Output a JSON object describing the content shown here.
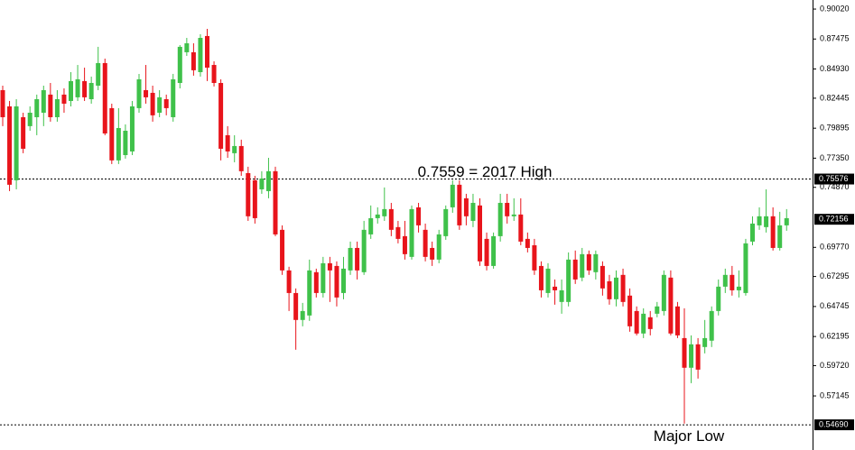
{
  "chart_data": {
    "type": "candlestick",
    "annotations": [
      "0.7559 = 2017 High",
      "Major Low"
    ],
    "ylim": [
      0.5255,
      0.9079
    ],
    "yticks": [
      {
        "value": 0.9002,
        "label": "0.90020"
      },
      0.87475,
      {
        "value": 0.8493,
        "label": "0.84930"
      },
      0.82445,
      0.79895,
      {
        "value": 0.7735,
        "label": "0.77350"
      },
      {
        "value": 0.7487,
        "label": "0.74870"
      },
      {
        "value": 0.6977,
        "label": "0.69770"
      },
      0.67295,
      0.64745,
      0.62195,
      {
        "value": 0.5972,
        "label": "0.59720"
      },
      0.57145
    ],
    "marked_levels": [
      0.75576,
      {
        "value": 0.5469,
        "label": "0.54690"
      }
    ],
    "current_price": 0.72156,
    "up_color": "#3fc14a",
    "down_color": "#e8141b",
    "open": [
      0.8313,
      0.8175,
      0.7547,
      0.8083,
      0.8007,
      0.8083,
      0.8121,
      0.8275,
      0.8083,
      0.8275,
      0.8221,
      0.8252,
      0.839,
      0.8236,
      0.8351,
      0.8543,
      0.816,
      0.7716,
      0.7761,
      0.7792,
      0.816,
      0.8313,
      0.829,
      0.8121,
      0.8236,
      0.8083,
      0.8374,
      0.8635,
      0.8635,
      0.8466,
      0.8773,
      0.8527,
      0.8374,
      0.793,
      0.7777,
      0.7838,
      0.7608,
      0.7547,
      0.747,
      0.7455,
      0.7624,
      0.7126,
      0.6781,
      0.6589,
      0.636,
      0.6398,
      0.6766,
      0.6589,
      0.6842,
      0.6819,
      0.6589,
      0.6781,
      0.6972,
      0.6766,
      0.7087,
      0.7225,
      0.7241,
      0.7302,
      0.7149,
      0.7072,
      0.6896,
      0.7317,
      0.7126,
      0.6972,
      0.6873,
      0.7072,
      0.7317,
      0.7509,
      0.7394,
      0.7202,
      0.7333,
      0.7049,
      0.6819,
      0.7072,
      0.7355,
      0.7241,
      0.7256,
      0.7049,
      0.6995,
      0.6819,
      0.6589,
      0.6643,
      0.6513,
      0.6513,
      0.6873,
      0.672,
      0.6919,
      0.6766,
      0.6819,
      0.6689,
      0.6536,
      0.6743,
      0.6567,
      0.6436,
      0.6245,
      0.6383,
      0.6413,
      0.6436,
      0.672,
      0.6475,
      0.6206,
      0.5954,
      0.6153,
      0.613,
      0.6184,
      0.6436,
      0.6643,
      0.6743,
      0.6612,
      0.6589,
      0.7026,
      0.7164,
      0.7149,
      0.7241,
      0.6972,
      0.7164
    ],
    "high": [
      0.8351,
      0.8221,
      0.8236,
      0.8121,
      0.8175,
      0.8275,
      0.8351,
      0.8374,
      0.8313,
      0.8328,
      0.8466,
      0.8527,
      0.8504,
      0.8428,
      0.8681,
      0.8581,
      0.8198,
      0.816,
      0.8022,
      0.8221,
      0.8451,
      0.8527,
      0.8351,
      0.8313,
      0.8275,
      0.8451,
      0.8696,
      0.8757,
      0.8711,
      0.8788,
      0.8834,
      0.8558,
      0.8405,
      0.8007,
      0.793,
      0.7892,
      0.7662,
      0.7585,
      0.7624,
      0.7738,
      0.7662,
      0.7164,
      0.6812,
      0.6628,
      0.6505,
      0.6873,
      0.6796,
      0.6896,
      0.6896,
      0.6858,
      0.6896,
      0.7026,
      0.7026,
      0.7202,
      0.7333,
      0.7317,
      0.7486,
      0.7355,
      0.7202,
      0.7202,
      0.7333,
      0.7355,
      0.7179,
      0.7026,
      0.7126,
      0.7333,
      0.7547,
      0.7547,
      0.7432,
      0.7432,
      0.7394,
      0.7103,
      0.7103,
      0.7432,
      0.7432,
      0.7394,
      0.7394,
      0.7103,
      0.7049,
      0.6858,
      0.6842,
      0.6704,
      0.6704,
      0.6934,
      0.695,
      0.6972,
      0.695,
      0.695,
      0.6858,
      0.6743,
      0.6781,
      0.6796,
      0.6628,
      0.6475,
      0.6459,
      0.6436,
      0.6513,
      0.6781,
      0.6781,
      0.6513,
      0.6459,
      0.6229,
      0.6206,
      0.636,
      0.6475,
      0.6704,
      0.6796,
      0.6819,
      0.6781,
      0.7049,
      0.7241,
      0.7317,
      0.747,
      0.7317,
      0.7279,
      0.7302
    ],
    "low": [
      0.8007,
      0.7455,
      0.747,
      0.7777,
      0.7968,
      0.793,
      0.8007,
      0.8045,
      0.8045,
      0.8121,
      0.8175,
      0.8221,
      0.8221,
      0.8198,
      0.8313,
      0.793,
      0.7685,
      0.7685,
      0.7731,
      0.7761,
      0.8121,
      0.8198,
      0.8045,
      0.8083,
      0.8099,
      0.8045,
      0.8328,
      0.8604,
      0.8436,
      0.8428,
      0.839,
      0.8344,
      0.7716,
      0.7738,
      0.77,
      0.7585,
      0.7202,
      0.7179,
      0.7432,
      0.7394,
      0.7072,
      0.6743,
      0.6436,
      0.6107,
      0.6306,
      0.6352,
      0.6551,
      0.6551,
      0.6513,
      0.6475,
      0.6536,
      0.6743,
      0.6704,
      0.6743,
      0.7049,
      0.7179,
      0.7202,
      0.7072,
      0.7011,
      0.6873,
      0.6873,
      0.7103,
      0.6858,
      0.6819,
      0.6842,
      0.7041,
      0.7271,
      0.7126,
      0.7164,
      0.7149,
      0.6819,
      0.6781,
      0.6796,
      0.7026,
      0.7179,
      0.7202,
      0.6995,
      0.6934,
      0.6743,
      0.6551,
      0.6551,
      0.649,
      0.6413,
      0.6475,
      0.6666,
      0.6689,
      0.6743,
      0.6704,
      0.6567,
      0.649,
      0.6475,
      0.6475,
      0.626,
      0.6229,
      0.6206,
      0.6229,
      0.6383,
      0.6398,
      0.6229,
      0.6206,
      0.5479,
      0.5823,
      0.5862,
      0.6076,
      0.613,
      0.6398,
      0.6589,
      0.6567,
      0.6551,
      0.6567,
      0.6995,
      0.7126,
      0.7103,
      0.695,
      0.695,
      0.7118
    ],
    "close": [
      0.8083,
      0.7509,
      0.8175,
      0.7815,
      0.8121,
      0.8236,
      0.8313,
      0.8083,
      0.8236,
      0.8198,
      0.839,
      0.8405,
      0.8252,
      0.8374,
      0.8543,
      0.7945,
      0.7716,
      0.7991,
      0.7968,
      0.8175,
      0.8405,
      0.8252,
      0.8099,
      0.8252,
      0.816,
      0.8405,
      0.8681,
      0.8711,
      0.8482,
      0.8757,
      0.8504,
      0.8374,
      0.7815,
      0.7792,
      0.7838,
      0.7624,
      0.7241,
      0.7225,
      0.7562,
      0.7624,
      0.7087,
      0.6781,
      0.6589,
      0.636,
      0.6436,
      0.6781,
      0.6589,
      0.6842,
      0.6781,
      0.6551,
      0.6796,
      0.6972,
      0.6781,
      0.7126,
      0.7225,
      0.7256,
      0.7302,
      0.7126,
      0.7049,
      0.6919,
      0.7302,
      0.7164,
      0.6896,
      0.6873,
      0.7087,
      0.7302,
      0.7509,
      0.7164,
      0.7241,
      0.7355,
      0.6858,
      0.6819,
      0.7072,
      0.7355,
      0.7241,
      0.7256,
      0.7026,
      0.6972,
      0.6781,
      0.6612,
      0.6796,
      0.6612,
      0.6612,
      0.6873,
      0.6704,
      0.6919,
      0.6781,
      0.6919,
      0.6628,
      0.6536,
      0.672,
      0.6513,
      0.6306,
      0.6245,
      0.6413,
      0.6283,
      0.6475,
      0.6743,
      0.6245,
      0.6229,
      0.5954,
      0.6153,
      0.5938,
      0.6206,
      0.6436,
      0.6643,
      0.6743,
      0.6612,
      0.6643,
      0.7011,
      0.7179,
      0.7241,
      0.7241,
      0.6972,
      0.7164,
      0.7225
    ]
  }
}
